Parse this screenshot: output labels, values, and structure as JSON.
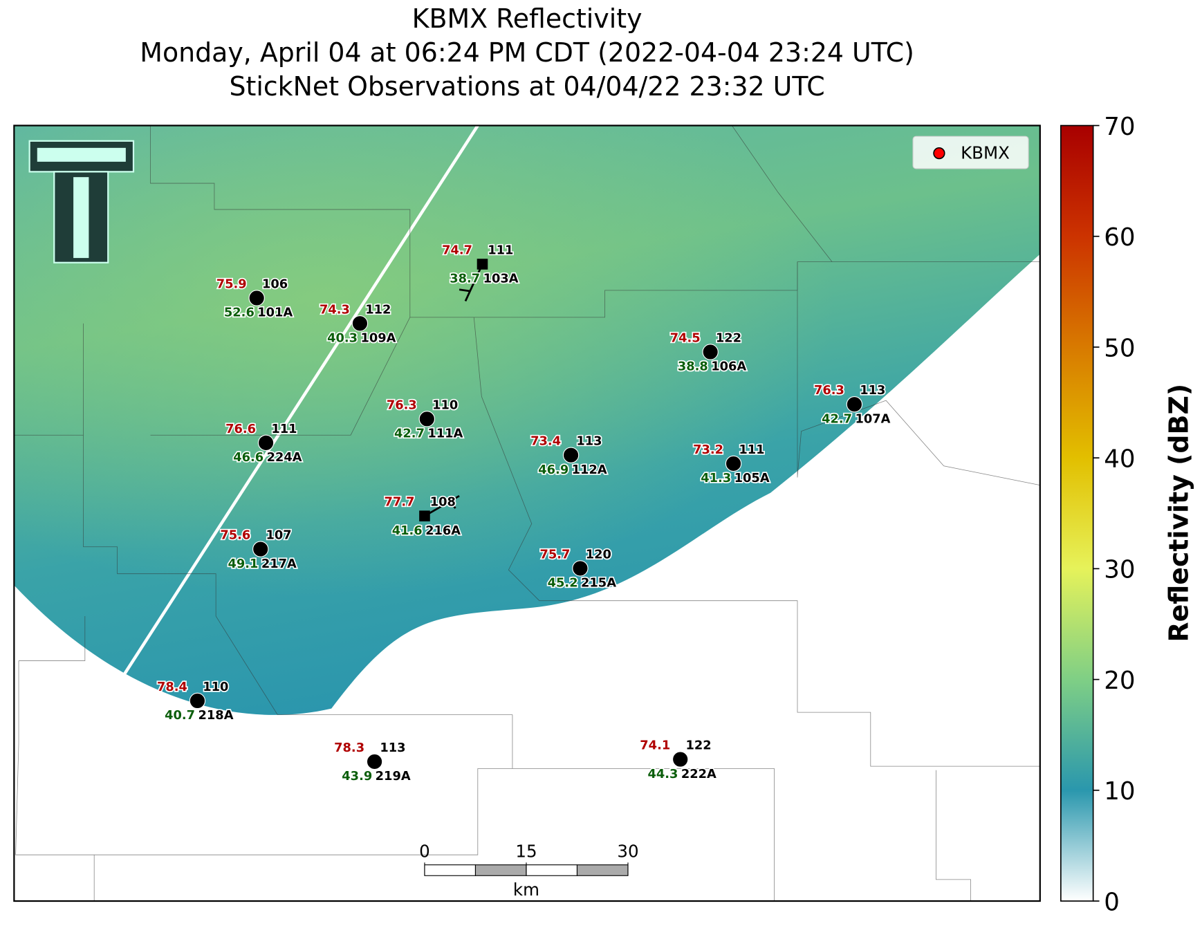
{
  "title": [
    "KBMX Reflectivity",
    "Monday, April 04 at 06:24 PM CDT (2022-04-04 23:24 UTC)",
    "StickNet Observations at 04/04/22 23:32 UTC"
  ],
  "legend": {
    "label": "KBMX",
    "corner": "upper right",
    "color": "#ff0000"
  },
  "colorbar": {
    "label": "Reflectivity (dBZ)",
    "lim": [
      0,
      70
    ],
    "ticks": [
      0,
      10,
      20,
      30,
      40,
      50,
      60,
      70
    ]
  },
  "scale_bar": {
    "ticks": [
      0,
      15,
      30
    ],
    "unit": "km"
  },
  "temperature_color": "#b00000",
  "dewpoint_color": "#0b5e0b",
  "stations": [
    {
      "temperature": "75.9",
      "value": "106",
      "dewpoint": "52.6",
      "id": "101A",
      "marker": "circle"
    },
    {
      "temperature": "74.3",
      "value": "112",
      "dewpoint": "40.3",
      "id": "109A",
      "marker": "circle"
    },
    {
      "temperature": "74.7",
      "value": "111",
      "dewpoint": "38.7",
      "id": "103A",
      "marker": "square"
    },
    {
      "temperature": "74.5",
      "value": "122",
      "dewpoint": "38.8",
      "id": "106A",
      "marker": "circle"
    },
    {
      "temperature": "76.3",
      "value": "113",
      "dewpoint": "42.7",
      "id": "107A",
      "marker": "circle"
    },
    {
      "temperature": "76.3",
      "value": "110",
      "dewpoint": "42.7",
      "id": "111A",
      "marker": "circle"
    },
    {
      "temperature": "76.6",
      "value": "111",
      "dewpoint": "46.6",
      "id": "224A",
      "marker": "circle"
    },
    {
      "temperature": "73.4",
      "value": "113",
      "dewpoint": "46.9",
      "id": "112A",
      "marker": "circle"
    },
    {
      "temperature": "73.2",
      "value": "111",
      "dewpoint": "41.3",
      "id": "105A",
      "marker": "circle"
    },
    {
      "temperature": "77.7",
      "value": "108",
      "dewpoint": "41.6",
      "id": "216A",
      "marker": "square"
    },
    {
      "temperature": "75.6",
      "value": "107",
      "dewpoint": "49.1",
      "id": "217A",
      "marker": "circle"
    },
    {
      "temperature": "75.7",
      "value": "120",
      "dewpoint": "45.2",
      "id": "215A",
      "marker": "circle"
    },
    {
      "temperature": "78.4",
      "value": "110",
      "dewpoint": "40.7",
      "id": "218A",
      "marker": "circle"
    },
    {
      "temperature": "78.3",
      "value": "113",
      "dewpoint": "43.9",
      "id": "219A",
      "marker": "circle"
    },
    {
      "temperature": "74.1",
      "value": "122",
      "dewpoint": "44.3",
      "id": "222A",
      "marker": "circle"
    }
  ]
}
